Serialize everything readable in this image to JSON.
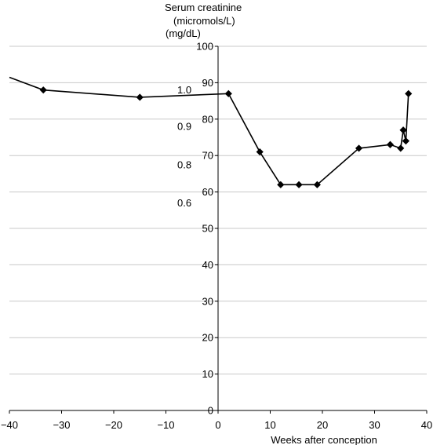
{
  "chart_data": {
    "type": "line",
    "title": "",
    "ylabel_lines": [
      "Serum creatinine",
      "(micromols/L)"
    ],
    "ylabel_secondary": "(mg/dL)",
    "xlabel": "Weeks after conception",
    "xlim": [
      -40,
      40
    ],
    "ylim": [
      0,
      100
    ],
    "x_ticks": [
      -40,
      -30,
      -20,
      -10,
      0,
      10,
      20,
      30,
      40
    ],
    "y_ticks": [
      0,
      10,
      20,
      30,
      40,
      50,
      60,
      70,
      80,
      90,
      100
    ],
    "grid": true,
    "mgdl_labels": [
      {
        "text": "1.0",
        "y": 88
      },
      {
        "text": "0.9",
        "y": 78
      },
      {
        "text": "0.8",
        "y": 67.5
      },
      {
        "text": "0.6",
        "y": 57
      }
    ],
    "series": [
      {
        "marker_start_index": 1,
        "x": [
          -40,
          -33.5,
          -15,
          2,
          8,
          12,
          15.5,
          19,
          27,
          33,
          35,
          35.5,
          36,
          36.5
        ],
        "y": [
          91.5,
          88,
          86,
          87,
          71,
          62,
          62,
          62,
          72,
          73,
          72,
          77,
          74,
          87
        ]
      }
    ]
  }
}
